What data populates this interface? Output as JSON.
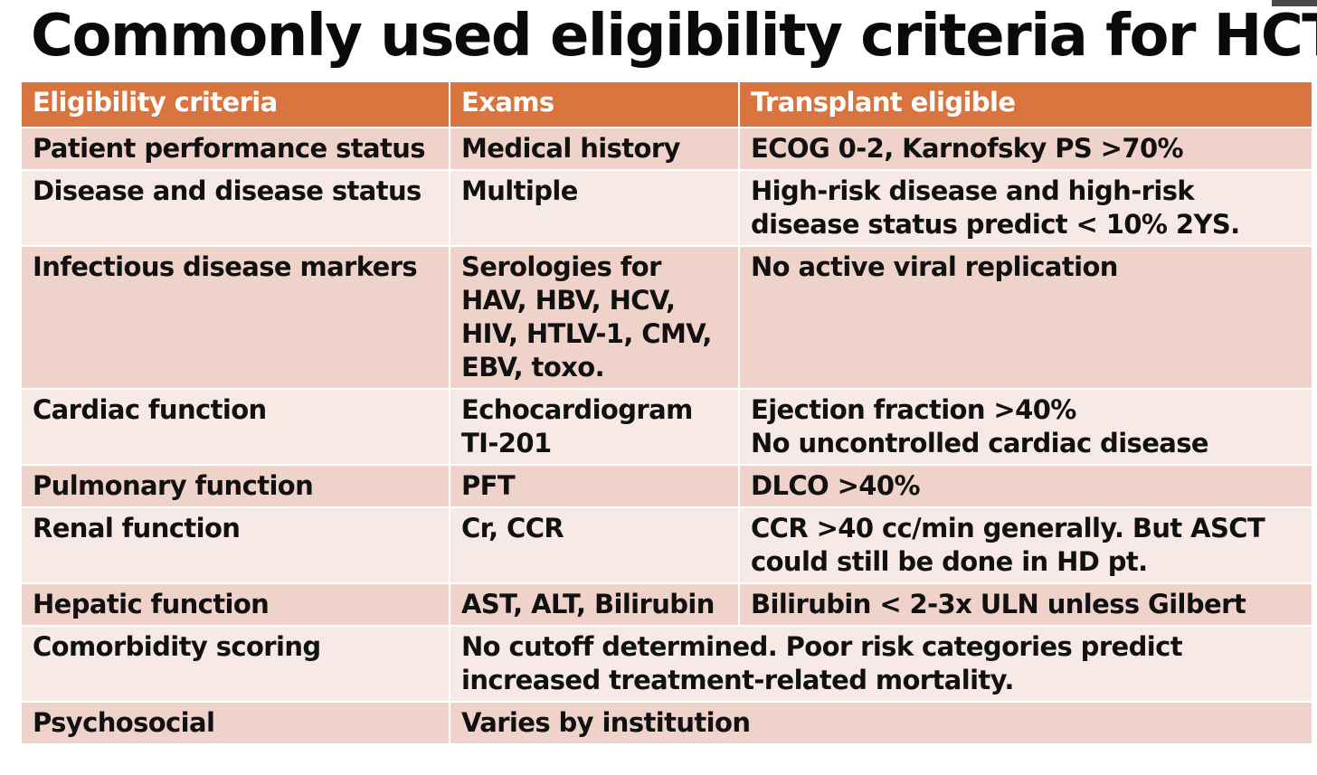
{
  "slide": {
    "title": "Commonly used eligibility criteria for HCT"
  },
  "table": {
    "headers": [
      "Eligibility criteria",
      "Exams",
      "Transplant eligible"
    ],
    "rows": [
      {
        "criterion": "Patient performance status",
        "exam": [
          "Medical history"
        ],
        "eligible": [
          "ECOG 0-2, Karnofsky PS >70%"
        ]
      },
      {
        "criterion": "Disease and disease status",
        "exam": [
          "Multiple"
        ],
        "eligible": [
          "High-risk disease and high-risk",
          "disease status predict < 10% 2YS."
        ]
      },
      {
        "criterion": "Infectious disease markers",
        "exam": [
          "Serologies for",
          "HAV, HBV, HCV,",
          "HIV, HTLV-1, CMV,",
          "EBV, toxo."
        ],
        "eligible": [
          "No active viral replication"
        ]
      },
      {
        "criterion": "Cardiac function",
        "exam": [
          "Echocardiogram",
          "TI-201"
        ],
        "eligible": [
          "Ejection fraction >40%",
          "No uncontrolled cardiac disease"
        ]
      },
      {
        "criterion": "Pulmonary function",
        "exam": [
          "PFT"
        ],
        "eligible": [
          "DLCO >40%"
        ]
      },
      {
        "criterion": "Renal function",
        "exam": [
          "Cr, CCR"
        ],
        "eligible": [
          "CCR >40 cc/min generally. But ASCT",
          "could still be done in HD pt."
        ]
      },
      {
        "criterion": "Hepatic function",
        "exam": [
          "AST, ALT, Bilirubin"
        ],
        "eligible": [
          "Bilirubin < 2-3x ULN unless Gilbert"
        ]
      },
      {
        "criterion": "Comorbidity scoring",
        "merged": [
          "No cutoff determined. Poor risk categories predict",
          "increased treatment-related mortality."
        ]
      },
      {
        "criterion": "Psychosocial",
        "merged": [
          "Varies by institution"
        ]
      }
    ]
  },
  "colors": {
    "header_bg": "#d9743e",
    "header_text": "#ffffff",
    "row_dark": "#efd3cb",
    "row_light": "#f7e9e6",
    "border": "#ffffff"
  }
}
